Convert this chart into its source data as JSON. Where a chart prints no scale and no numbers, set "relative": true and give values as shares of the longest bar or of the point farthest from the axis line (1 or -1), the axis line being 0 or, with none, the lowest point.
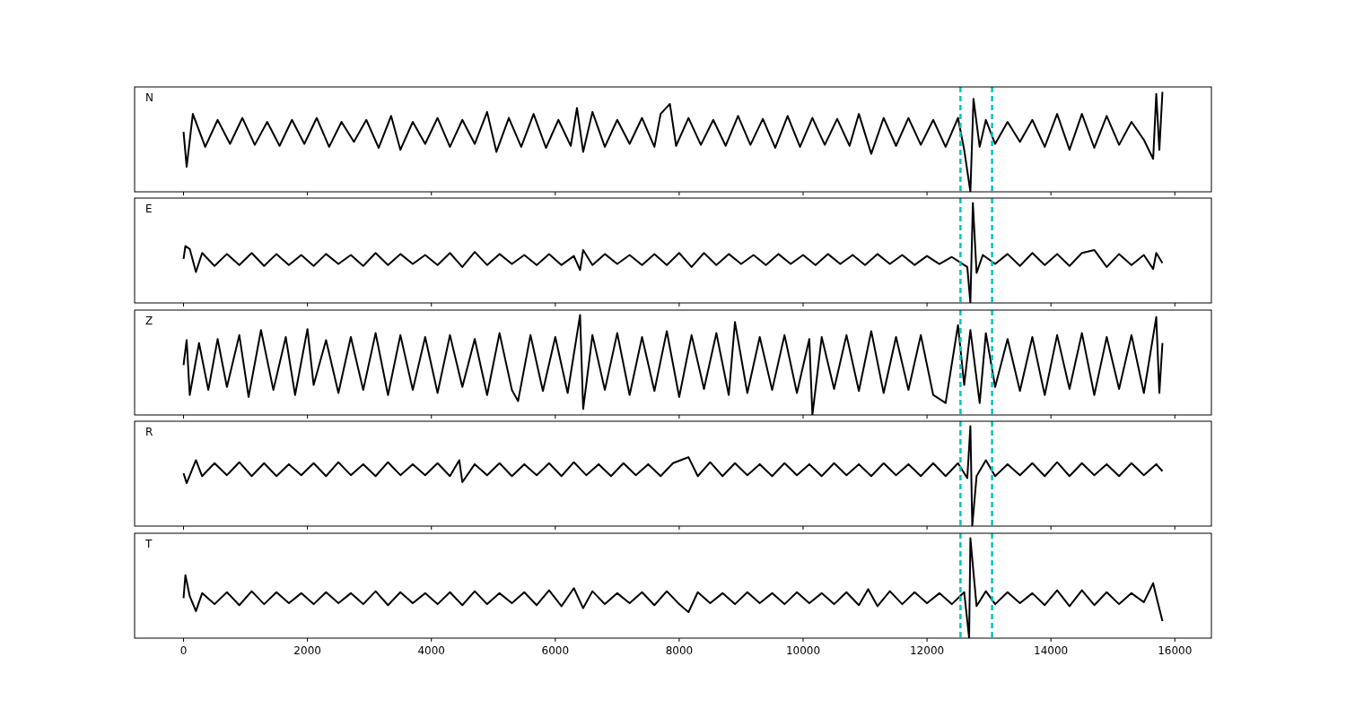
{
  "chart_data": [
    {
      "type": "line",
      "relative": true,
      "annotations": [
        "N"
      ],
      "tick_labels": false,
      "xlim": [
        -790,
        16590
      ],
      "xticks": [
        0,
        2000,
        4000,
        6000,
        8000,
        10000,
        12000,
        14000,
        16000
      ],
      "ref_lines": [
        {
          "axis": "x",
          "value": 12540,
          "color": "#00c5c5",
          "line_style": "dashed"
        },
        {
          "axis": "x",
          "value": 13050,
          "color": "#00c5c5",
          "line_style": "dashed"
        }
      ],
      "x": [
        0,
        50,
        150,
        350,
        550,
        750,
        950,
        1150,
        1350,
        1550,
        1750,
        1950,
        2150,
        2350,
        2550,
        2750,
        2950,
        3150,
        3350,
        3500,
        3700,
        3900,
        4100,
        4300,
        4500,
        4700,
        4900,
        5050,
        5250,
        5450,
        5650,
        5850,
        6050,
        6250,
        6350,
        6450,
        6600,
        6800,
        7000,
        7200,
        7400,
        7600,
        7700,
        7850,
        7950,
        8150,
        8350,
        8550,
        8750,
        8950,
        9150,
        9350,
        9550,
        9750,
        9950,
        10150,
        10350,
        10550,
        10750,
        10900,
        11100,
        11300,
        11500,
        11700,
        11900,
        12100,
        12300,
        12500,
        12600,
        12700,
        12750,
        12850,
        12950,
        13100,
        13300,
        13500,
        13700,
        13900,
        14100,
        14300,
        14500,
        14700,
        14900,
        15100,
        15300,
        15500,
        15650,
        15700,
        15750,
        15800
      ],
      "series": [
        {
          "color": "#000000",
          "values": [
            0.6,
            0.25,
            0.78,
            0.45,
            0.72,
            0.48,
            0.74,
            0.47,
            0.7,
            0.46,
            0.72,
            0.48,
            0.74,
            0.45,
            0.7,
            0.5,
            0.72,
            0.44,
            0.76,
            0.42,
            0.7,
            0.48,
            0.74,
            0.45,
            0.72,
            0.48,
            0.8,
            0.4,
            0.74,
            0.45,
            0.78,
            0.44,
            0.72,
            0.46,
            0.84,
            0.4,
            0.8,
            0.45,
            0.72,
            0.48,
            0.74,
            0.45,
            0.78,
            0.88,
            0.46,
            0.74,
            0.47,
            0.72,
            0.46,
            0.76,
            0.47,
            0.73,
            0.44,
            0.76,
            0.45,
            0.74,
            0.47,
            0.73,
            0.46,
            0.78,
            0.38,
            0.74,
            0.46,
            0.74,
            0.47,
            0.72,
            0.45,
            0.74,
            0.42,
            0.0,
            0.93,
            0.45,
            0.72,
            0.48,
            0.7,
            0.5,
            0.72,
            0.45,
            0.78,
            0.42,
            0.78,
            0.44,
            0.76,
            0.47,
            0.7,
            0.52,
            0.33,
            0.98,
            0.42,
            1.0
          ]
        }
      ]
    },
    {
      "type": "line",
      "relative": true,
      "annotations": [
        "E"
      ],
      "tick_labels": false,
      "xlim": [
        -790,
        16590
      ],
      "xticks": [
        0,
        2000,
        4000,
        6000,
        8000,
        10000,
        12000,
        14000,
        16000
      ],
      "ref_lines": [
        {
          "axis": "x",
          "value": 12540,
          "color": "#00c5c5",
          "line_style": "dashed"
        },
        {
          "axis": "x",
          "value": 13050,
          "color": "#00c5c5",
          "line_style": "dashed"
        }
      ],
      "x": [
        0,
        30,
        100,
        200,
        300,
        500,
        700,
        900,
        1100,
        1300,
        1500,
        1700,
        1900,
        2100,
        2300,
        2500,
        2700,
        2900,
        3100,
        3300,
        3500,
        3700,
        3900,
        4100,
        4300,
        4500,
        4700,
        4900,
        5100,
        5300,
        5500,
        5700,
        5900,
        6100,
        6300,
        6400,
        6450,
        6600,
        6800,
        7000,
        7200,
        7400,
        7600,
        7800,
        8000,
        8200,
        8400,
        8600,
        8800,
        9000,
        9200,
        9400,
        9600,
        9800,
        10000,
        10200,
        10400,
        10600,
        10800,
        11000,
        11200,
        11400,
        11600,
        11800,
        12000,
        12200,
        12400,
        12650,
        12700,
        12740,
        12800,
        12900,
        13100,
        13300,
        13500,
        13700,
        13900,
        14100,
        14300,
        14500,
        14700,
        14900,
        15100,
        15300,
        15500,
        15650,
        15700,
        15800
      ],
      "series": [
        {
          "color": "#000000",
          "values": [
            0.44,
            0.57,
            0.54,
            0.31,
            0.5,
            0.37,
            0.49,
            0.38,
            0.5,
            0.37,
            0.49,
            0.38,
            0.48,
            0.37,
            0.49,
            0.39,
            0.48,
            0.37,
            0.5,
            0.38,
            0.49,
            0.39,
            0.48,
            0.38,
            0.5,
            0.36,
            0.51,
            0.38,
            0.49,
            0.39,
            0.48,
            0.38,
            0.49,
            0.38,
            0.47,
            0.33,
            0.53,
            0.38,
            0.49,
            0.39,
            0.48,
            0.38,
            0.49,
            0.38,
            0.5,
            0.36,
            0.5,
            0.38,
            0.49,
            0.39,
            0.48,
            0.38,
            0.49,
            0.39,
            0.48,
            0.38,
            0.49,
            0.39,
            0.48,
            0.38,
            0.49,
            0.39,
            0.48,
            0.38,
            0.47,
            0.39,
            0.46,
            0.36,
            0.0,
            1.0,
            0.3,
            0.48,
            0.39,
            0.49,
            0.37,
            0.5,
            0.38,
            0.49,
            0.37,
            0.5,
            0.53,
            0.36,
            0.49,
            0.38,
            0.48,
            0.34,
            0.5,
            0.4
          ]
        }
      ]
    },
    {
      "type": "line",
      "relative": true,
      "annotations": [
        "Z"
      ],
      "tick_labels": false,
      "xlim": [
        -790,
        16590
      ],
      "xticks": [
        0,
        2000,
        4000,
        6000,
        8000,
        10000,
        12000,
        14000,
        16000
      ],
      "ref_lines": [
        {
          "axis": "x",
          "value": 12540,
          "color": "#00c5c5",
          "line_style": "dashed"
        },
        {
          "axis": "x",
          "value": 13050,
          "color": "#00c5c5",
          "line_style": "dashed"
        }
      ],
      "x": [
        0,
        50,
        100,
        250,
        400,
        550,
        700,
        900,
        1050,
        1250,
        1450,
        1650,
        1800,
        2000,
        2100,
        2300,
        2500,
        2700,
        2900,
        3100,
        3300,
        3500,
        3700,
        3900,
        4100,
        4300,
        4500,
        4700,
        4900,
        5100,
        5300,
        5400,
        5600,
        5800,
        6000,
        6200,
        6400,
        6450,
        6600,
        6800,
        7000,
        7200,
        7400,
        7600,
        7800,
        8000,
        8200,
        8400,
        8600,
        8800,
        8900,
        9100,
        9300,
        9500,
        9700,
        9900,
        10100,
        10150,
        10300,
        10500,
        10700,
        10900,
        11100,
        11300,
        11500,
        11700,
        11900,
        12100,
        12300,
        12500,
        12600,
        12700,
        12850,
        12950,
        13100,
        13300,
        13500,
        13700,
        13900,
        14100,
        14300,
        14500,
        14700,
        14900,
        15100,
        15300,
        15500,
        15700,
        15750,
        15800
      ],
      "series": [
        {
          "color": "#000000",
          "values": [
            0.5,
            0.75,
            0.2,
            0.72,
            0.25,
            0.76,
            0.28,
            0.8,
            0.18,
            0.85,
            0.25,
            0.78,
            0.2,
            0.86,
            0.3,
            0.75,
            0.22,
            0.78,
            0.25,
            0.82,
            0.2,
            0.8,
            0.25,
            0.78,
            0.22,
            0.8,
            0.28,
            0.76,
            0.2,
            0.82,
            0.25,
            0.14,
            0.8,
            0.24,
            0.78,
            0.22,
            1.0,
            0.06,
            0.8,
            0.25,
            0.82,
            0.2,
            0.78,
            0.24,
            0.84,
            0.18,
            0.8,
            0.26,
            0.82,
            0.2,
            0.93,
            0.22,
            0.78,
            0.25,
            0.8,
            0.22,
            0.76,
            0.0,
            0.78,
            0.26,
            0.8,
            0.24,
            0.84,
            0.22,
            0.78,
            0.25,
            0.8,
            0.2,
            0.12,
            0.9,
            0.3,
            0.85,
            0.12,
            0.82,
            0.28,
            0.76,
            0.24,
            0.78,
            0.2,
            0.8,
            0.26,
            0.82,
            0.2,
            0.78,
            0.26,
            0.8,
            0.22,
            0.98,
            0.22,
            0.72
          ]
        }
      ]
    },
    {
      "type": "line",
      "relative": true,
      "annotations": [
        "R"
      ],
      "tick_labels": false,
      "xlim": [
        -790,
        16590
      ],
      "xticks": [
        0,
        2000,
        4000,
        6000,
        8000,
        10000,
        12000,
        14000,
        16000
      ],
      "ref_lines": [
        {
          "axis": "x",
          "value": 12540,
          "color": "#00c5c5",
          "line_style": "dashed"
        },
        {
          "axis": "x",
          "value": 13050,
          "color": "#00c5c5",
          "line_style": "dashed"
        }
      ],
      "x": [
        0,
        50,
        200,
        300,
        500,
        700,
        900,
        1100,
        1300,
        1500,
        1700,
        1900,
        2100,
        2300,
        2500,
        2700,
        2900,
        3100,
        3300,
        3500,
        3700,
        3900,
        4100,
        4300,
        4450,
        4500,
        4700,
        4900,
        5100,
        5300,
        5500,
        5700,
        5900,
        6100,
        6300,
        6500,
        6700,
        6900,
        7100,
        7300,
        7500,
        7700,
        7900,
        8150,
        8300,
        8500,
        8700,
        8900,
        9100,
        9300,
        9500,
        9700,
        9900,
        10100,
        10300,
        10500,
        10700,
        10900,
        11100,
        11300,
        11500,
        11700,
        11900,
        12100,
        12300,
        12500,
        12650,
        12700,
        12730,
        12800,
        12950,
        13100,
        13300,
        13500,
        13700,
        13900,
        14100,
        14300,
        14500,
        14700,
        14900,
        15100,
        15300,
        15500,
        15700,
        15800
      ],
      "series": [
        {
          "color": "#000000",
          "values": [
            0.53,
            0.43,
            0.66,
            0.5,
            0.63,
            0.51,
            0.64,
            0.5,
            0.63,
            0.5,
            0.62,
            0.51,
            0.63,
            0.5,
            0.64,
            0.51,
            0.62,
            0.5,
            0.64,
            0.51,
            0.62,
            0.51,
            0.63,
            0.5,
            0.66,
            0.44,
            0.62,
            0.51,
            0.63,
            0.5,
            0.62,
            0.51,
            0.63,
            0.5,
            0.64,
            0.51,
            0.62,
            0.5,
            0.63,
            0.51,
            0.62,
            0.5,
            0.63,
            0.69,
            0.5,
            0.64,
            0.5,
            0.63,
            0.51,
            0.62,
            0.5,
            0.63,
            0.51,
            0.62,
            0.5,
            0.63,
            0.51,
            0.62,
            0.5,
            0.63,
            0.51,
            0.62,
            0.5,
            0.63,
            0.5,
            0.63,
            0.48,
            1.0,
            0.0,
            0.5,
            0.66,
            0.5,
            0.62,
            0.51,
            0.63,
            0.5,
            0.64,
            0.5,
            0.63,
            0.51,
            0.62,
            0.5,
            0.63,
            0.51,
            0.62,
            0.55
          ]
        }
      ]
    },
    {
      "type": "line",
      "relative": true,
      "annotations": [
        "T"
      ],
      "tick_labels": "x",
      "xlim": [
        -790,
        16590
      ],
      "xticks": [
        0,
        2000,
        4000,
        6000,
        8000,
        10000,
        12000,
        14000,
        16000
      ],
      "ref_lines": [
        {
          "axis": "x",
          "value": 12540,
          "color": "#00c5c5",
          "line_style": "dashed"
        },
        {
          "axis": "x",
          "value": 13050,
          "color": "#00c5c5",
          "line_style": "dashed"
        }
      ],
      "x": [
        0,
        30,
        100,
        200,
        300,
        500,
        700,
        900,
        1100,
        1300,
        1500,
        1700,
        1900,
        2100,
        2300,
        2500,
        2700,
        2900,
        3100,
        3300,
        3500,
        3700,
        3900,
        4100,
        4300,
        4500,
        4700,
        4900,
        5100,
        5300,
        5500,
        5700,
        5900,
        6100,
        6300,
        6450,
        6600,
        6800,
        7000,
        7200,
        7400,
        7600,
        7800,
        8000,
        8150,
        8300,
        8500,
        8700,
        8900,
        9100,
        9300,
        9500,
        9700,
        9900,
        10100,
        10300,
        10500,
        10700,
        10900,
        11050,
        11200,
        11400,
        11600,
        11800,
        12000,
        12200,
        12400,
        12600,
        12680,
        12700,
        12800,
        12950,
        13100,
        13300,
        13500,
        13700,
        13900,
        14100,
        14300,
        14500,
        14700,
        14900,
        15100,
        15300,
        15500,
        15650,
        15700,
        15800
      ],
      "series": [
        {
          "color": "#000000",
          "values": [
            0.4,
            0.63,
            0.42,
            0.27,
            0.45,
            0.34,
            0.46,
            0.33,
            0.47,
            0.34,
            0.46,
            0.35,
            0.45,
            0.34,
            0.46,
            0.35,
            0.45,
            0.34,
            0.47,
            0.33,
            0.46,
            0.35,
            0.45,
            0.34,
            0.46,
            0.33,
            0.47,
            0.34,
            0.45,
            0.35,
            0.46,
            0.33,
            0.48,
            0.32,
            0.5,
            0.3,
            0.47,
            0.34,
            0.45,
            0.35,
            0.46,
            0.33,
            0.47,
            0.34,
            0.26,
            0.46,
            0.35,
            0.45,
            0.34,
            0.46,
            0.35,
            0.45,
            0.34,
            0.46,
            0.35,
            0.45,
            0.34,
            0.46,
            0.33,
            0.49,
            0.32,
            0.47,
            0.34,
            0.46,
            0.35,
            0.45,
            0.34,
            0.46,
            0.0,
            1.0,
            0.32,
            0.47,
            0.34,
            0.46,
            0.35,
            0.45,
            0.33,
            0.48,
            0.32,
            0.48,
            0.33,
            0.46,
            0.34,
            0.45,
            0.36,
            0.55,
            0.42,
            0.17
          ]
        }
      ]
    }
  ]
}
